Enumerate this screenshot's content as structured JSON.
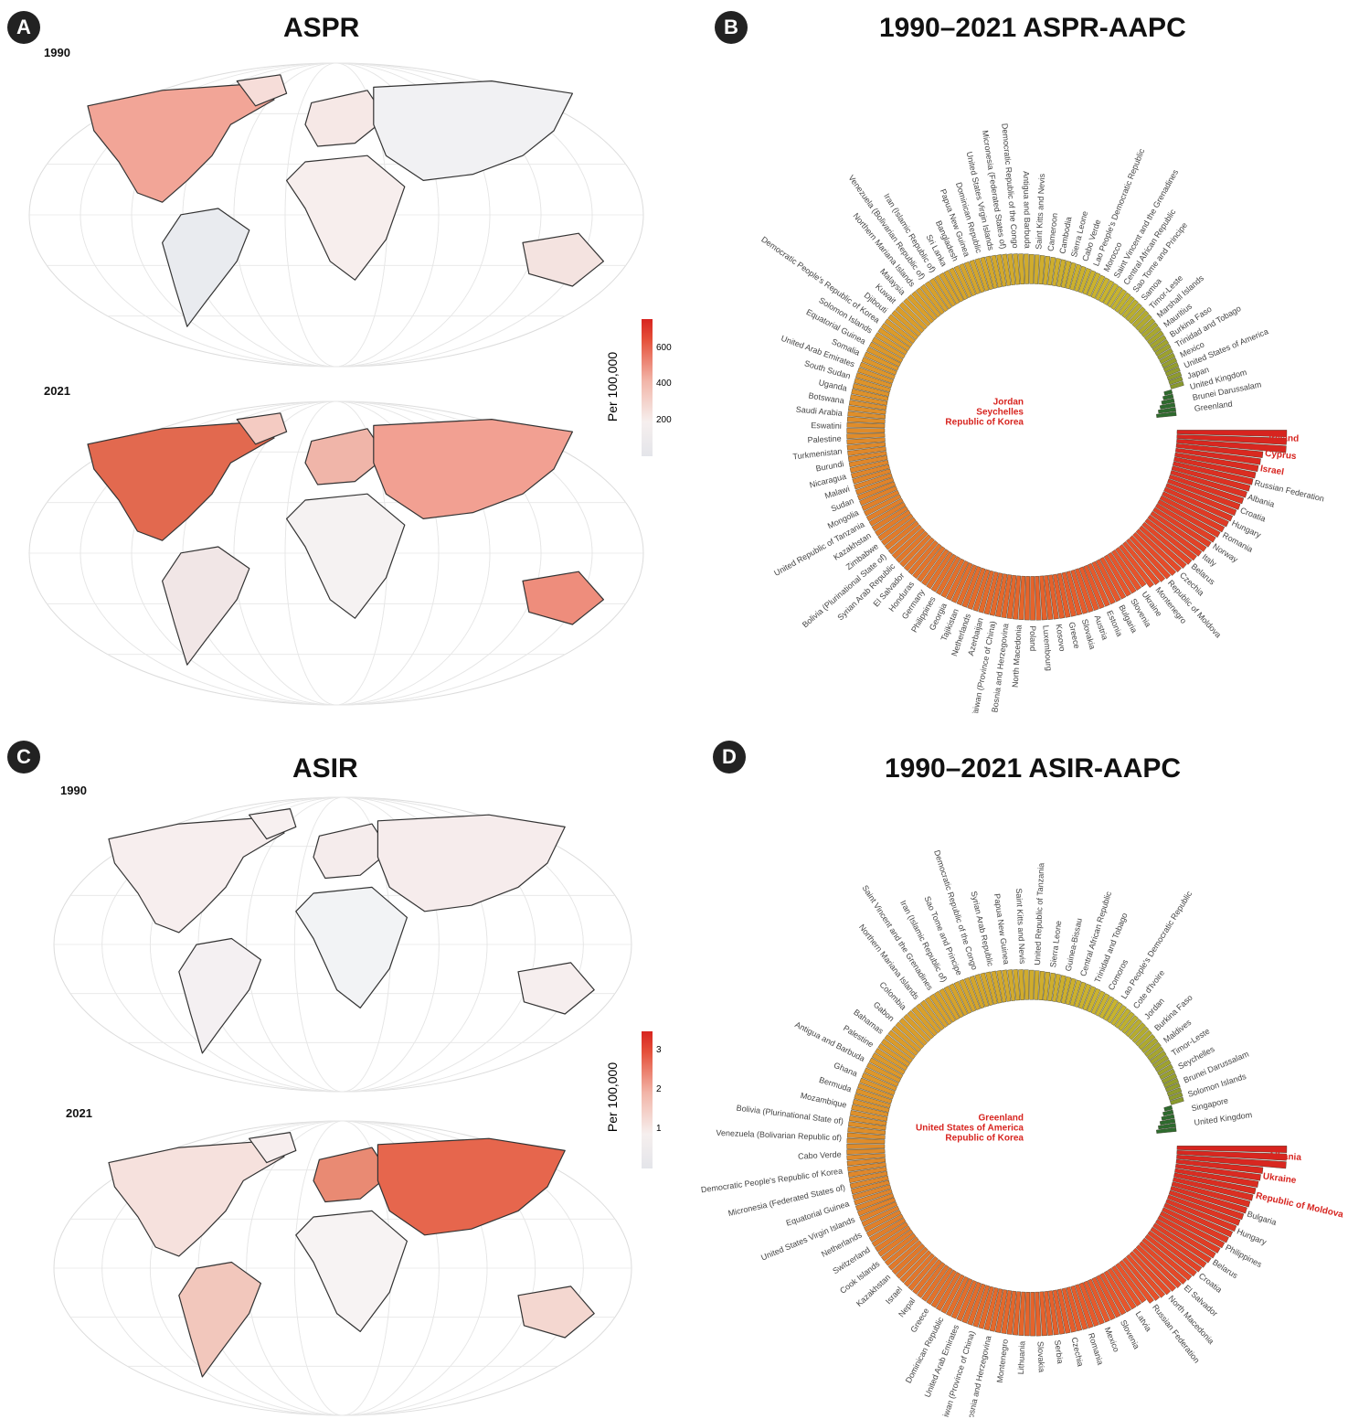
{
  "panels": {
    "A": {
      "badge": "A",
      "title": "ASPR",
      "year_top": "1990",
      "year_bottom": "2021",
      "legend": {
        "label": "Per 100,000",
        "ticks": [
          "200",
          "400",
          "600"
        ],
        "tick_values": [
          200,
          400,
          600
        ],
        "max": 760
      }
    },
    "B": {
      "badge": "B",
      "title": "1990–2021 ASPR-AAPC"
    },
    "C": {
      "badge": "C",
      "title": "ASIR",
      "year_top": "1990",
      "year_bottom": "2021",
      "legend": {
        "label": "Per 100,000",
        "ticks": [
          "1",
          "2",
          "3"
        ],
        "tick_values": [
          1,
          2,
          3
        ],
        "max": 3.5
      }
    },
    "D": {
      "badge": "D",
      "title": "1990–2021 ASIR-AAPC"
    }
  },
  "colors": {
    "high": "#d7241f",
    "mid_high": "#e8532b",
    "mid": "#dd9a2a",
    "mid_low": "#c9b52e",
    "low": "#8a9a2e",
    "lowest": "#2e6b2e",
    "map_low": "#e3e5ea",
    "map_high": "#e8543a",
    "highlight_text": "#d7241f"
  },
  "chart_data": [
    {
      "type": "choropleth",
      "title": "ASPR",
      "maps": [
        "1990",
        "2021"
      ],
      "legend_title": "Per 100,000",
      "legend_ticks": [
        200,
        400,
        600
      ]
    },
    {
      "type": "bar",
      "subtype": "circular",
      "title": "1990–2021 ASPR-AAPC",
      "top_labels": [
        "Ireland",
        "Cyprus",
        "Israel"
      ],
      "bottom_labels": [
        "Jordan",
        "Seychelles",
        "Republic of Korea"
      ],
      "labels_highest": [
        "Ireland",
        "Cyprus",
        "Israel",
        "Russian Federation",
        "Albania",
        "Croatia",
        "Hungary",
        "Romania",
        "Norway",
        "Italy",
        "Belarus",
        "Czechia",
        "Republic of Moldova",
        "Montenegro",
        "Ukraine",
        "Slovenia",
        "Bulgaria",
        "Estonia",
        "Austria",
        "Slovakia",
        "Greece",
        "Kosovo",
        "Luxembourg",
        "Poland",
        "North Macedonia",
        "Bosnia and Herzegovina"
      ],
      "labels_mid": [
        "Taiwan (Province of China)",
        "Azerbaijan",
        "Netherlands",
        "Tajikistan",
        "Georgia",
        "Philippines",
        "Germany",
        "Honduras",
        "El Salvador",
        "Syrian Arab Republic",
        "Bolivia (Plurinational State of)",
        "Zimbabwe",
        "Kazakhstan",
        "United Republic of Tanzania",
        "Mongolia",
        "Sudan",
        "Malawi",
        "Nicaragua",
        "Burundi",
        "Turkmenistan",
        "Palestine",
        "Eswatini",
        "Saudi Arabia",
        "Botswana",
        "Uganda",
        "South Sudan",
        "United Arab Emirates",
        "Somalia",
        "Equatorial Guinea",
        "Solomon Islands",
        "Democratic People's Republic of Korea",
        "Djibouti",
        "Kuwait",
        "Malaysia",
        "Northern Mariana Islands",
        "Venezuela (Bolivarian Republic of)",
        "Iran (Islamic Republic of)",
        "Sri Lanka",
        "Bangladesh",
        "Papua New Guinea",
        "Dominican Republic",
        "United States Virgin Islands",
        "Micronesia (Federated States of)"
      ],
      "labels_low": [
        "Democratic Republic of the Congo",
        "Antigua and Barbuda",
        "Saint Kitts and Nevis",
        "Cameroon",
        "Cambodia",
        "Sierra Leone",
        "Cabo Verde",
        "Lao People's Democratic Republic",
        "Morocco",
        "Saint Vincent and the Grenadines",
        "Central African Republic",
        "Sao Tome and Principe",
        "Samoa",
        "Timor-Leste",
        "Marshall Islands",
        "Mauritius",
        "Burkina Faso",
        "Trinidad and Tobago",
        "Mexico",
        "United States of America",
        "Japan",
        "United Kingdom",
        "Brunei Darussalam",
        "Greenland"
      ]
    },
    {
      "type": "choropleth",
      "title": "ASIR",
      "maps": [
        "1990",
        "2021"
      ],
      "legend_title": "Per 100,000",
      "legend_ticks": [
        1,
        2,
        3
      ]
    },
    {
      "type": "bar",
      "subtype": "circular",
      "title": "1990–2021 ASIR-AAPC",
      "top_labels": [
        "Albania",
        "Ukraine",
        "Republic of Moldova"
      ],
      "bottom_labels": [
        "Greenland",
        "United States of America",
        "Republic of Korea"
      ],
      "labels_highest": [
        "Albania",
        "Ukraine",
        "Republic of Moldova",
        "Bulgaria",
        "Hungary",
        "Philippines",
        "Belarus",
        "Croatia",
        "El Salvador",
        "North Macedonia",
        "Russian Federation",
        "Latvia",
        "Slovenia",
        "Mexico",
        "Romania",
        "Czechia",
        "Serbia",
        "Slovakia",
        "Lithuania",
        "Montenegro",
        "Bosnia and Herzegovina"
      ],
      "labels_mid": [
        "Taiwan (Province of China)",
        "United Arab Emirates",
        "Dominican Republic",
        "Greece",
        "Nepal",
        "Israel",
        "Kazakhstan",
        "Cook Islands",
        "Switzerland",
        "Netherlands",
        "United States Virgin Islands",
        "Equatorial Guinea",
        "Micronesia (Federated States of)",
        "Democratic People's Republic of Korea",
        "Cabo Verde",
        "Venezuela (Bolivarian Republic of)",
        "Bolivia (Plurinational State of)",
        "Mozambique",
        "Bermuda",
        "Ghana",
        "Antigua and Barbuda",
        "Palestine",
        "Bahamas",
        "Gabon",
        "Colombia",
        "Northern Mariana Islands",
        "Saint Vincent and the Grenadines",
        "Iran (Islamic Republic of)",
        "Sao Tome and Principe",
        "Democratic Republic of the Congo",
        "Syrian Arab Republic",
        "Papua New Guinea"
      ],
      "labels_low": [
        "Saint Kitts and Nevis",
        "United Republic of Tanzania",
        "Sierra Leone",
        "Guinea-Bissau",
        "Central African Republic",
        "Trinidad and Tobago",
        "Comoros",
        "Lao People's Democratic Republic",
        "Cote d'Ivoire",
        "Jordan",
        "Burkina Faso",
        "Maldives",
        "Timor-Leste",
        "Seychelles",
        "Brunei Darussalam",
        "Solomon Islands",
        "Singapore",
        "United Kingdom"
      ]
    }
  ]
}
